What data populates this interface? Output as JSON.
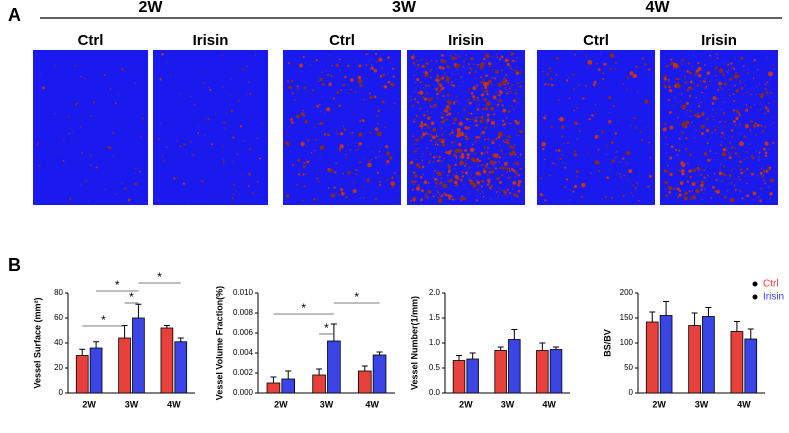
{
  "panels": {
    "a": "A",
    "b": "B"
  },
  "image_panel": {
    "groups": [
      {
        "label": "2W",
        "conditions": [
          "Ctrl",
          "Irisin"
        ]
      },
      {
        "label": "3W",
        "conditions": [
          "Ctrl",
          "Irisin"
        ]
      },
      {
        "label": "4W",
        "conditions": [
          "Ctrl",
          "Irisin"
        ]
      }
    ]
  },
  "chart_data": [
    {
      "type": "bar",
      "y_label": "Vessel Surface (mm²)",
      "categories": [
        "2W",
        "3W",
        "4W"
      ],
      "series": [
        {
          "name": "Ctrl",
          "color": "#e8413c",
          "values": [
            30,
            44,
            52
          ],
          "errors": [
            5,
            10,
            2
          ]
        },
        {
          "name": "Irisin",
          "color": "#3b45e6",
          "values": [
            36,
            60,
            41
          ],
          "errors": [
            5,
            11,
            3
          ]
        }
      ],
      "ylim": [
        0,
        80
      ],
      "yticks": [
        0,
        20,
        40,
        60,
        80
      ],
      "annotations": [
        "*",
        "*",
        "*",
        "*"
      ]
    },
    {
      "type": "bar",
      "y_label": "Vessel Volume Fraction(%)",
      "categories": [
        "2W",
        "3W",
        "4W"
      ],
      "series": [
        {
          "name": "Ctrl",
          "color": "#e8413c",
          "values": [
            0.001,
            0.0018,
            0.0022
          ],
          "errors": [
            0.0006,
            0.0006,
            0.0005
          ]
        },
        {
          "name": "Irisin",
          "color": "#3b45e6",
          "values": [
            0.0014,
            0.0052,
            0.0038
          ],
          "errors": [
            0.0008,
            0.0017,
            0.0003
          ]
        }
      ],
      "ylim": [
        0,
        0.01
      ],
      "yticks": [
        {
          "value": 0,
          "label": "0.000"
        },
        {
          "value": 0.002,
          "label": "0.002"
        },
        {
          "value": 0.004,
          "label": "0.004"
        },
        {
          "value": 0.006,
          "label": "0.006"
        },
        {
          "value": 0.008,
          "label": "0.008"
        },
        {
          "value": 0.01,
          "label": "0.010"
        }
      ],
      "annotations": [
        "*",
        "*",
        "*"
      ]
    },
    {
      "type": "bar",
      "y_label": "Vessel Number(1/mm)",
      "categories": [
        "2W",
        "3W",
        "4W"
      ],
      "series": [
        {
          "name": "Ctrl",
          "color": "#e8413c",
          "values": [
            0.65,
            0.85,
            0.85
          ],
          "errors": [
            0.1,
            0.07,
            0.15
          ]
        },
        {
          "name": "Irisin",
          "color": "#3b45e6",
          "values": [
            0.68,
            1.07,
            0.87
          ],
          "errors": [
            0.12,
            0.2,
            0.05
          ]
        }
      ],
      "ylim": [
        0,
        2
      ],
      "yticks": [
        {
          "value": 0,
          "label": "0.0"
        },
        {
          "value": 0.5,
          "label": "0.5"
        },
        {
          "value": 1,
          "label": "1.0"
        },
        {
          "value": 1.5,
          "label": "1.5"
        },
        {
          "value": 2,
          "label": "2.0"
        }
      ]
    },
    {
      "type": "bar",
      "y_label": "BS/BV",
      "categories": [
        "2W",
        "3W",
        "4W"
      ],
      "series": [
        {
          "name": "Ctrl",
          "color": "#e8413c",
          "values": [
            142,
            135,
            123
          ],
          "errors": [
            20,
            25,
            20
          ]
        },
        {
          "name": "Irisin",
          "color": "#3b45e6",
          "values": [
            155,
            153,
            108
          ],
          "errors": [
            28,
            18,
            20
          ]
        }
      ],
      "ylim": [
        0,
        200
      ],
      "yticks": [
        0,
        50,
        100,
        150,
        200
      ],
      "legend": "top-right"
    }
  ]
}
